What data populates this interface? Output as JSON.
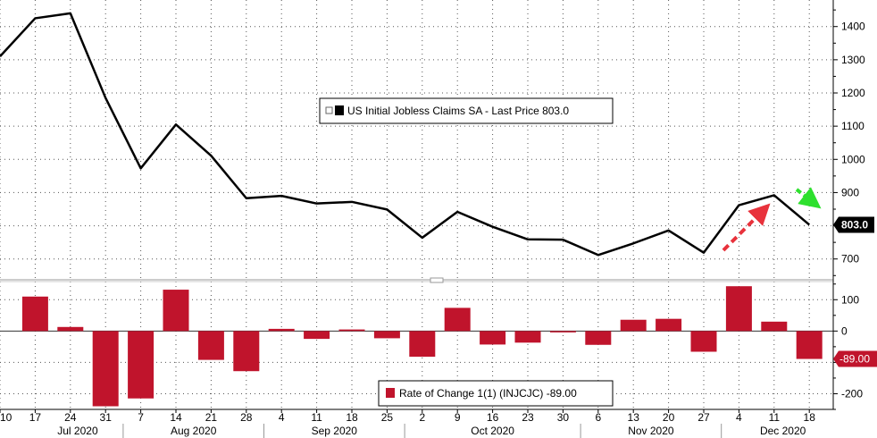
{
  "chart_data": [
    {
      "type": "line",
      "legend": "US Initial Jobless Claims SA - Last Price 803.0",
      "last_value_label": "803.0",
      "ylim": [
        640,
        1480
      ],
      "yticks": [
        700,
        800,
        900,
        1000,
        1100,
        1200,
        1300,
        1400
      ],
      "series": [
        {
          "name": "US Initial Jobless Claims SA",
          "color": "#000000",
          "values": [
            1310,
            1425,
            1440,
            1185,
            973,
            1105,
            1011,
            883,
            890,
            867,
            872,
            849,
            764,
            842,
            797,
            759,
            758,
            712,
            747,
            786,
            719,
            862,
            892,
            803
          ]
        }
      ]
    },
    {
      "type": "bar",
      "legend": "Rate of Change 1(1) (INJCJC) -89.00",
      "last_value_label": "-89.00",
      "ylim": [
        -250,
        155
      ],
      "yticks": [
        -200,
        -100,
        0,
        100
      ],
      "series": [
        {
          "name": "Rate of Change 1(1) (INJCJC)",
          "color": "#c0142c",
          "values": [
            null,
            110,
            13,
            -240,
            -215,
            132,
            -92,
            -128,
            7,
            -25,
            5,
            -23,
            -82,
            74,
            -43,
            -37,
            -1,
            -44,
            36,
            39,
            -66,
            143,
            30,
            -89
          ]
        }
      ]
    }
  ],
  "x_axis": {
    "day_labels": [
      "10",
      "17",
      "24",
      "31",
      "7",
      "14",
      "21",
      "28",
      "4",
      "11",
      "18",
      "25",
      "2",
      "9",
      "16",
      "23",
      "30",
      "6",
      "13",
      "20",
      "27",
      "4",
      "11",
      "18"
    ],
    "months": [
      "Jul 2020",
      "Aug 2020",
      "Sep 2020",
      "Oct 2020",
      "Nov 2020",
      "Dec 2020"
    ]
  },
  "annotations": {
    "up_arrow_color": "#e8323c",
    "down_arrow_color": "#2ee02e"
  }
}
